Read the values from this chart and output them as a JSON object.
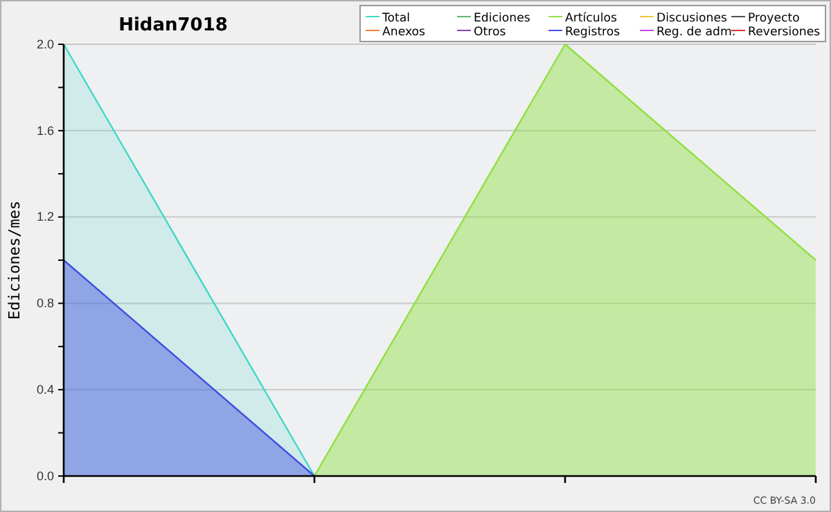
{
  "chart_data": {
    "type": "area",
    "title": "Hidan7018",
    "ylabel": "Ediciones/mes",
    "categories": [
      null,
      null,
      null,
      null
    ],
    "series": [
      {
        "name": "Total",
        "color": "#40d8c8",
        "values": [
          2,
          0,
          null,
          null
        ]
      },
      {
        "name": "Ediciones",
        "color": "#60b878",
        "values": [
          null,
          null,
          null,
          null
        ]
      },
      {
        "name": "Artículos",
        "color": "#90e040",
        "values": [
          null,
          0,
          2,
          1
        ]
      },
      {
        "name": "Discusiones",
        "color": "#f0c840",
        "values": [
          null,
          null,
          null,
          null
        ]
      },
      {
        "name": "Proyecto",
        "color": "#505050",
        "values": [
          null,
          null,
          null,
          null
        ]
      },
      {
        "name": "Anexos",
        "color": "#f08040",
        "values": [
          null,
          null,
          null,
          null
        ]
      },
      {
        "name": "Otros",
        "color": "#8040c0",
        "values": [
          null,
          null,
          null,
          null
        ]
      },
      {
        "name": "Registros",
        "color": "#4050e0",
        "values": [
          1,
          0,
          null,
          null
        ]
      },
      {
        "name": "Reg. de adm.",
        "color": "#c050e0",
        "values": [
          null,
          null,
          null,
          null
        ]
      },
      {
        "name": "Reversiones",
        "color": "#e03030",
        "values": [
          null,
          null,
          null,
          null
        ]
      }
    ],
    "ylim": [
      0,
      2
    ],
    "yticks": [
      {
        "value": 0,
        "label": "0.0"
      },
      {
        "value": 0.2,
        "label": null
      },
      {
        "value": 0.4,
        "label": "0.4"
      },
      {
        "value": 0.6,
        "label": null
      },
      {
        "value": 0.8,
        "label": "0.8"
      },
      {
        "value": 1,
        "label": null
      },
      {
        "value": 1.2,
        "label": "1.2"
      },
      {
        "value": 1.4,
        "label": null
      },
      {
        "value": 1.6,
        "label": "1.6"
      },
      {
        "value": 1.8,
        "label": null
      },
      {
        "value": 2,
        "label": "2.0"
      }
    ],
    "grid": "y",
    "legend": "top right",
    "annotations": [
      "CC BY-SA 3.0"
    ]
  }
}
